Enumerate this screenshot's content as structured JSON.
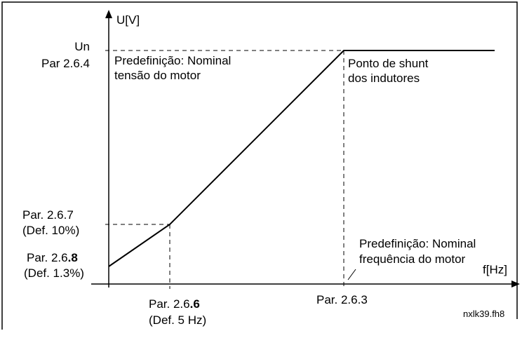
{
  "axes": {
    "y_label": "U[V]",
    "x_label": "f[Hz]"
  },
  "labels": {
    "un": "Un",
    "par_264": "Par 2.6.4",
    "default_voltage": [
      "Predefinição: Nominal",
      "tensão do motor"
    ],
    "shunt_point": [
      "Ponto de shunt",
      "dos indutores"
    ],
    "par_267": [
      "Par. 2.6.7",
      "(Def. 10%)"
    ],
    "par_268": {
      "prefix": "Par. 2.6",
      "bold": ".8",
      "note": "(Def. 1.3%)"
    },
    "default_frequency": [
      "Predefinição: Nominal",
      "frequência do motor"
    ],
    "par_266": {
      "prefix": "Par. 2.6",
      "bold": ".6",
      "note": "(Def. 5 Hz)"
    },
    "par_263": "Par. 2.6.3",
    "file_name": "nxlk39.fh8"
  }
}
